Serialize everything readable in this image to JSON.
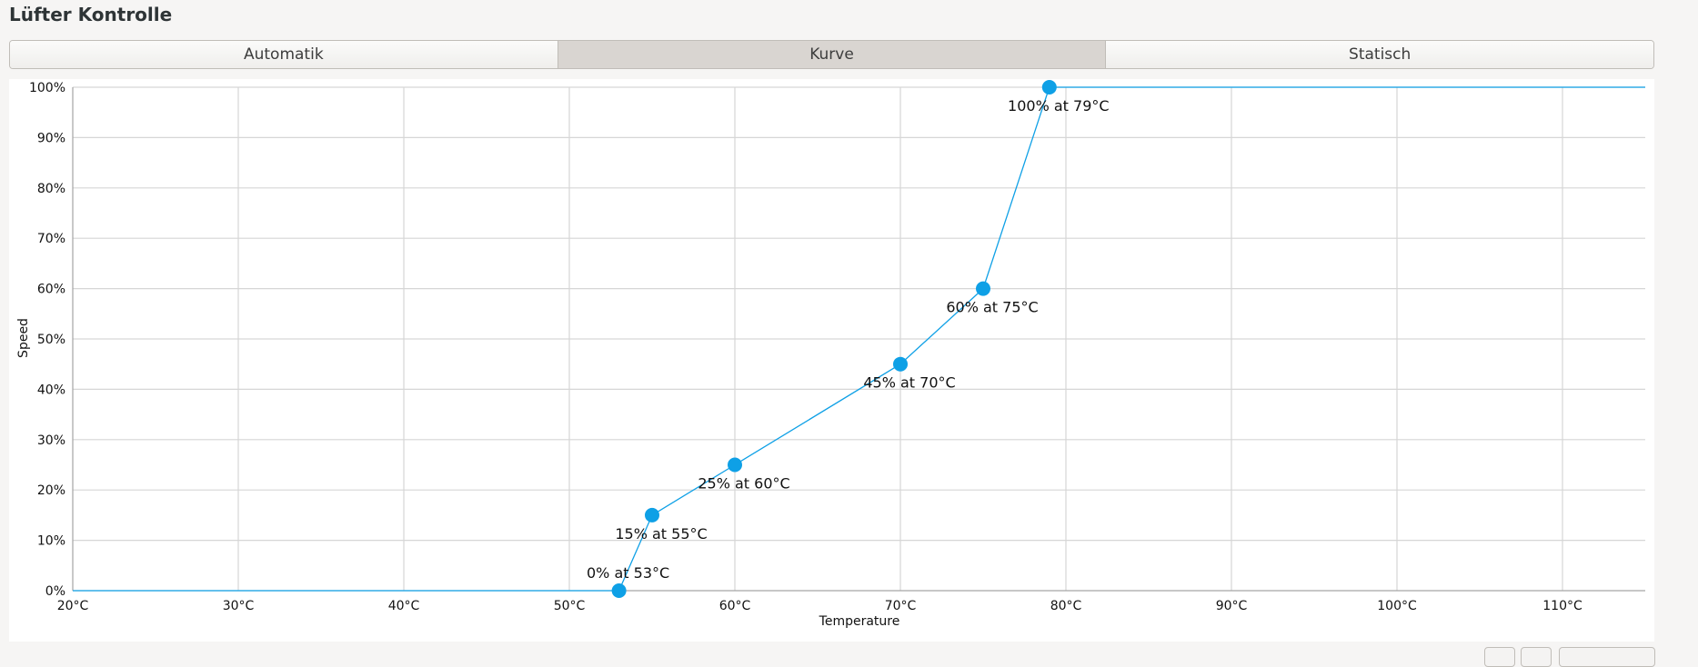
{
  "header": {
    "title": "Lüfter Kontrolle"
  },
  "tabs": [
    "Automatik",
    "Kurve",
    "Statisch"
  ],
  "chart_data": {
    "type": "line",
    "x_label": "Temperature",
    "y_label": "Speed",
    "xlim": [
      20,
      115
    ],
    "ylim": [
      0,
      100
    ],
    "xticks": [
      {
        "value": 20,
        "label": "20°C"
      },
      {
        "value": 30,
        "label": "30°C"
      },
      {
        "value": 40,
        "label": "40°C"
      },
      {
        "value": 50,
        "label": "50°C"
      },
      {
        "value": 60,
        "label": "60°C"
      },
      {
        "value": 70,
        "label": "70°C"
      },
      {
        "value": 80,
        "label": "80°C"
      },
      {
        "value": 90,
        "label": "90°C"
      },
      {
        "value": 100,
        "label": "100°C"
      },
      {
        "value": 110,
        "label": "110°C"
      }
    ],
    "yticks": [
      {
        "value": 0,
        "label": "0%"
      },
      {
        "value": 10,
        "label": "10%"
      },
      {
        "value": 20,
        "label": "20%"
      },
      {
        "value": 30,
        "label": "30%"
      },
      {
        "value": 40,
        "label": "40%"
      },
      {
        "value": 50,
        "label": "50%"
      },
      {
        "value": 60,
        "label": "60%"
      },
      {
        "value": 70,
        "label": "70%"
      },
      {
        "value": 80,
        "label": "80%"
      },
      {
        "value": 90,
        "label": "90%"
      },
      {
        "value": 100,
        "label": "100%"
      }
    ],
    "grid": true,
    "series": [
      {
        "color": "#0ea0e6",
        "x": [
          53,
          55,
          60,
          70,
          75,
          79
        ],
        "values": [
          0,
          15,
          25,
          45,
          60,
          100
        ],
        "value_labels": [
          "0% at 53°C",
          "15% at 55°C",
          "25% at 60°C",
          "45% at 70°C",
          "60% at 75°C",
          "100% at 79°C"
        ]
      }
    ]
  }
}
